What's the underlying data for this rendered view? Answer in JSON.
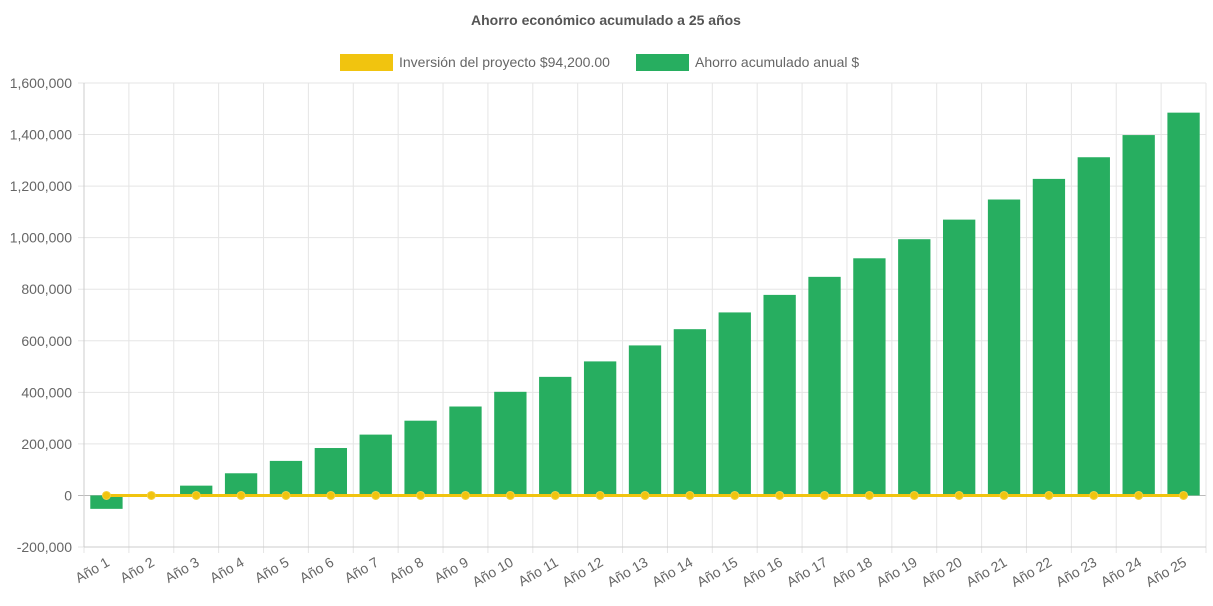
{
  "chart_data": {
    "type": "bar",
    "title": "Ahorro económico acumulado a 25 años",
    "categories": [
      "Año 1",
      "Año 2",
      "Año 3",
      "Año 4",
      "Año 5",
      "Año 6",
      "Año 7",
      "Año 8",
      "Año 9",
      "Año 10",
      "Año 11",
      "Año 12",
      "Año 13",
      "Año 14",
      "Año 15",
      "Año 16",
      "Año 17",
      "Año 18",
      "Año 19",
      "Año 20",
      "Año 21",
      "Año 22",
      "Año 23",
      "Año 24",
      "Año 25"
    ],
    "series": [
      {
        "name": "Inversión del proyecto $94,200.00",
        "kind": "line",
        "color": "#f1c40f",
        "values": [
          0,
          0,
          0,
          0,
          0,
          0,
          0,
          0,
          0,
          0,
          0,
          0,
          0,
          0,
          0,
          0,
          0,
          0,
          0,
          0,
          0,
          0,
          0,
          0,
          0
        ]
      },
      {
        "name": "Ahorro acumulado anual $",
        "kind": "bar",
        "color": "#27ae60",
        "values": [
          -52000,
          0,
          38000,
          86000,
          134000,
          184000,
          236000,
          290000,
          345000,
          402000,
          460000,
          520000,
          582000,
          645000,
          710000,
          778000,
          848000,
          920000,
          994000,
          1070000,
          1148000,
          1228000,
          1312000,
          1398000,
          1485000
        ]
      }
    ],
    "ylim": [
      -200000,
      1600000
    ],
    "yticks": [
      -200000,
      0,
      200000,
      400000,
      600000,
      800000,
      1000000,
      1200000,
      1400000,
      1600000
    ],
    "ytick_labels": [
      "-200,000",
      "0",
      "200,000",
      "400,000",
      "600,000",
      "800,000",
      "1,000,000",
      "1,200,000",
      "1,400,000",
      "1,600,000"
    ],
    "xlabel": "",
    "ylabel": "",
    "grid": true,
    "legend_position": "top"
  }
}
